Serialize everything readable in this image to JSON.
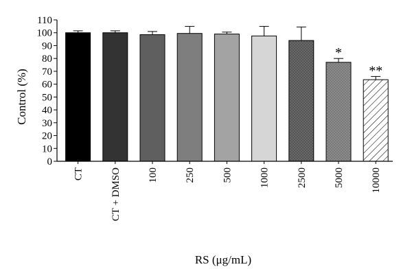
{
  "chart_data": {
    "type": "bar",
    "categories": [
      "CT",
      "CT + DMSO",
      "100",
      "250",
      "500",
      "1000",
      "2500",
      "5000",
      "10000"
    ],
    "values": [
      100,
      100,
      98.5,
      99.5,
      99,
      97.5,
      94,
      77,
      63.5
    ],
    "errors": [
      1.5,
      1.5,
      2.5,
      5.5,
      1.5,
      7.5,
      10.5,
      3,
      2.5
    ],
    "annotations": [
      "",
      "",
      "",
      "",
      "",
      "",
      "",
      "*",
      "**"
    ],
    "xlabel": "RS (μg/mL)",
    "ylabel": "Control (%)",
    "ylim": [
      0,
      110
    ],
    "yticks": [
      0,
      10,
      20,
      30,
      40,
      50,
      60,
      70,
      80,
      90,
      100,
      110
    ],
    "grid": false,
    "bar_colors": [
      "#000000",
      "#333333",
      "#5f5f5f",
      "#7e7e7e",
      "#a3a3a3",
      "#d6d6d6",
      "#555555",
      "#8c8c8c",
      "#ffffff"
    ],
    "bar_patterns": [
      "solid",
      "solid",
      "solid",
      "solid",
      "solid",
      "solid",
      "dots-light",
      "dots-dark",
      "hatch"
    ]
  }
}
